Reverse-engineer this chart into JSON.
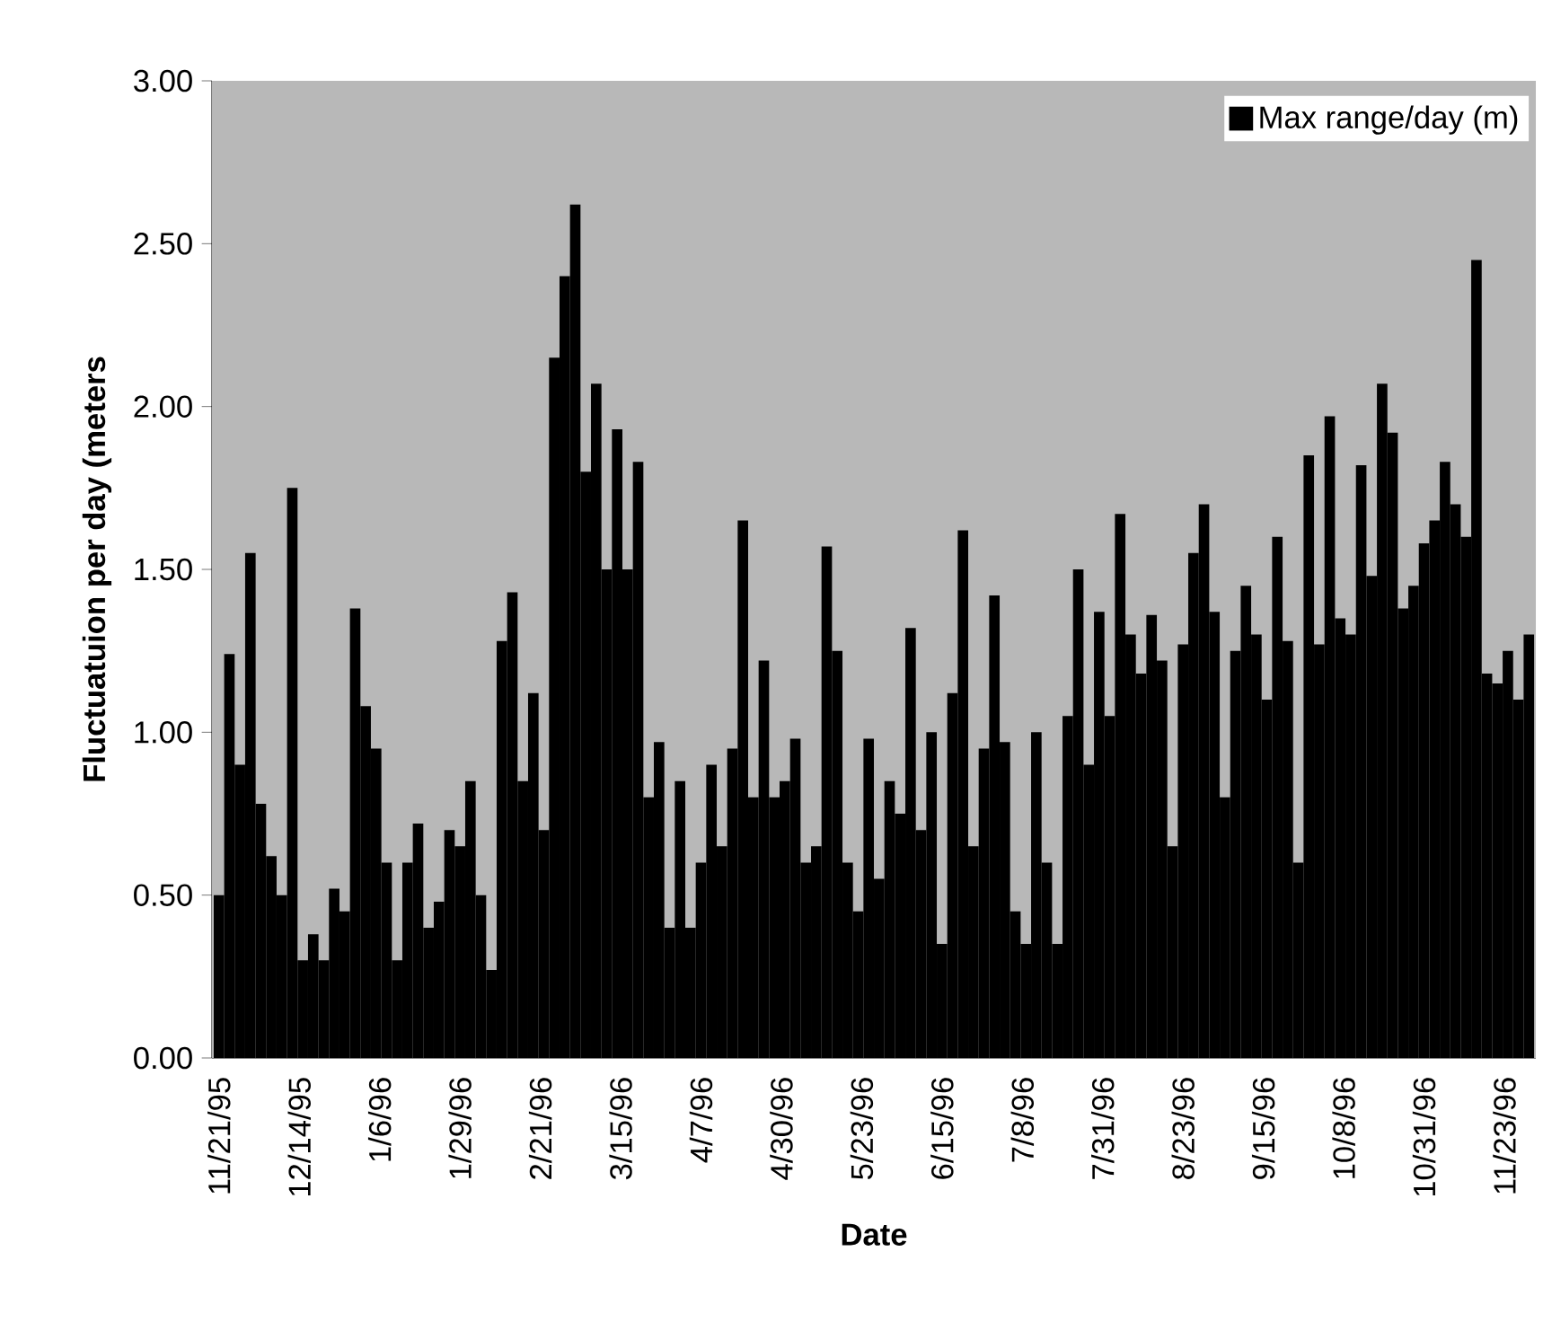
{
  "chart_data": {
    "type": "bar",
    "xlabel": "Date",
    "ylabel": "Fluctuatuion per day (meters",
    "x": [
      "1995-11-21",
      "1995-11-24",
      "1995-11-27",
      "1995-11-30",
      "1995-12-03",
      "1995-12-06",
      "1995-12-09",
      "1995-12-12",
      "1995-12-15",
      "1995-12-18",
      "1995-12-21",
      "1995-12-24",
      "1995-12-27",
      "1995-12-30",
      "1996-01-02",
      "1996-01-05",
      "1996-01-08",
      "1996-01-11",
      "1996-01-14",
      "1996-01-17",
      "1996-01-20",
      "1996-01-23",
      "1996-01-26",
      "1996-01-29",
      "1996-02-01",
      "1996-02-04",
      "1996-02-07",
      "1996-02-10",
      "1996-02-13",
      "1996-02-16",
      "1996-02-19",
      "1996-02-22",
      "1996-02-25",
      "1996-02-28",
      "1996-03-02",
      "1996-03-05",
      "1996-03-08",
      "1996-03-11",
      "1996-03-14",
      "1996-03-17",
      "1996-03-20",
      "1996-03-23",
      "1996-03-26",
      "1996-03-29",
      "1996-04-01",
      "1996-04-04",
      "1996-04-07",
      "1996-04-10",
      "1996-04-13",
      "1996-04-16",
      "1996-04-19",
      "1996-04-22",
      "1996-04-25",
      "1996-04-28",
      "1996-05-01",
      "1996-05-04",
      "1996-05-07",
      "1996-05-10",
      "1996-05-13",
      "1996-05-16",
      "1996-05-19",
      "1996-05-22",
      "1996-05-25",
      "1996-05-28",
      "1996-05-31",
      "1996-06-03",
      "1996-06-06",
      "1996-06-09",
      "1996-06-12",
      "1996-06-15",
      "1996-06-18",
      "1996-06-21",
      "1996-06-24",
      "1996-06-27",
      "1996-06-30",
      "1996-07-03",
      "1996-07-06",
      "1996-07-09",
      "1996-07-12",
      "1996-07-15",
      "1996-07-18",
      "1996-07-21",
      "1996-07-24",
      "1996-07-27",
      "1996-07-30",
      "1996-08-02",
      "1996-08-05",
      "1996-08-08",
      "1996-08-11",
      "1996-08-14",
      "1996-08-17",
      "1996-08-20",
      "1996-08-23",
      "1996-08-26",
      "1996-08-29",
      "1996-09-01",
      "1996-09-04",
      "1996-09-07",
      "1996-09-10",
      "1996-09-13",
      "1996-09-16",
      "1996-09-19",
      "1996-09-22",
      "1996-09-25",
      "1996-09-28",
      "1996-10-01",
      "1996-10-04",
      "1996-10-07",
      "1996-10-10",
      "1996-10-13",
      "1996-10-16",
      "1996-10-19",
      "1996-10-22",
      "1996-10-25",
      "1996-10-28",
      "1996-10-31",
      "1996-11-03",
      "1996-11-06",
      "1996-11-09",
      "1996-11-12",
      "1996-11-15",
      "1996-11-18",
      "1996-11-21",
      "1996-11-24",
      "1996-11-27",
      "1996-11-30"
    ],
    "series": [
      {
        "name": "Max range/day (m)",
        "color": "#000000",
        "values": [
          0.5,
          1.24,
          0.9,
          1.55,
          0.78,
          0.62,
          0.5,
          1.75,
          0.3,
          0.38,
          0.3,
          0.52,
          0.45,
          1.38,
          1.08,
          0.95,
          0.6,
          0.3,
          0.6,
          0.72,
          0.4,
          0.48,
          0.7,
          0.65,
          0.85,
          0.5,
          0.27,
          1.28,
          1.43,
          0.85,
          1.12,
          0.7,
          2.15,
          2.4,
          2.62,
          1.8,
          2.07,
          1.5,
          1.93,
          1.5,
          1.83,
          0.8,
          0.97,
          0.4,
          0.85,
          0.4,
          0.6,
          0.9,
          0.65,
          0.95,
          1.65,
          0.8,
          1.22,
          0.8,
          0.85,
          0.98,
          0.6,
          0.65,
          1.57,
          1.25,
          0.6,
          0.45,
          0.98,
          0.55,
          0.85,
          0.75,
          1.32,
          0.7,
          1.0,
          0.35,
          1.12,
          1.62,
          0.65,
          0.95,
          1.42,
          0.97,
          0.45,
          0.35,
          1.0,
          0.6,
          0.35,
          1.05,
          1.5,
          0.9,
          1.37,
          1.05,
          1.67,
          1.3,
          1.18,
          1.36,
          1.22,
          0.65,
          1.27,
          1.55,
          1.7,
          1.37,
          0.8,
          1.25,
          1.45,
          1.3,
          1.1,
          1.6,
          1.28,
          0.6,
          1.85,
          1.27,
          1.97,
          1.35,
          1.3,
          1.82,
          1.48,
          2.07,
          1.92,
          1.38,
          1.45,
          1.58,
          1.65,
          1.83,
          1.7,
          1.6,
          2.45,
          1.18,
          1.15,
          1.25,
          1.1,
          1.3
        ]
      }
    ],
    "xlim": [
      "1995-11-19",
      "1996-12-02"
    ],
    "xticks": [
      {
        "value": "1995-11-21",
        "label": "11/21/95"
      },
      {
        "value": "1995-12-14",
        "label": "12/14/95"
      },
      {
        "value": "1996-01-06",
        "label": "1/6/96"
      },
      {
        "value": "1996-01-29",
        "label": "1/29/96"
      },
      {
        "value": "1996-02-21",
        "label": "2/21/96"
      },
      {
        "value": "1996-03-15",
        "label": "3/15/96"
      },
      {
        "value": "1996-04-07",
        "label": "4/7/96"
      },
      {
        "value": "1996-04-30",
        "label": "4/30/96"
      },
      {
        "value": "1996-05-23",
        "label": "5/23/96"
      },
      {
        "value": "1996-06-15",
        "label": "6/15/96"
      },
      {
        "value": "1996-07-08",
        "label": "7/8/96"
      },
      {
        "value": "1996-07-31",
        "label": "7/31/96"
      },
      {
        "value": "1996-08-23",
        "label": "8/23/96"
      },
      {
        "value": "1996-09-15",
        "label": "9/15/96"
      },
      {
        "value": "1996-10-08",
        "label": "10/8/96"
      },
      {
        "value": "1996-10-31",
        "label": "10/31/96"
      },
      {
        "value": "1996-11-23",
        "label": "11/23/96"
      }
    ],
    "ylim": [
      0,
      3
    ],
    "yticks": [
      {
        "value": 0,
        "label": "0.00"
      },
      {
        "value": 0.5,
        "label": "0.50"
      },
      {
        "value": 1,
        "label": "1.00"
      },
      {
        "value": 1.5,
        "label": "1.50"
      },
      {
        "value": 2,
        "label": "2.00"
      },
      {
        "value": 2.5,
        "label": "2.50"
      },
      {
        "value": 3,
        "label": "3.00"
      }
    ],
    "legend": "top right"
  }
}
